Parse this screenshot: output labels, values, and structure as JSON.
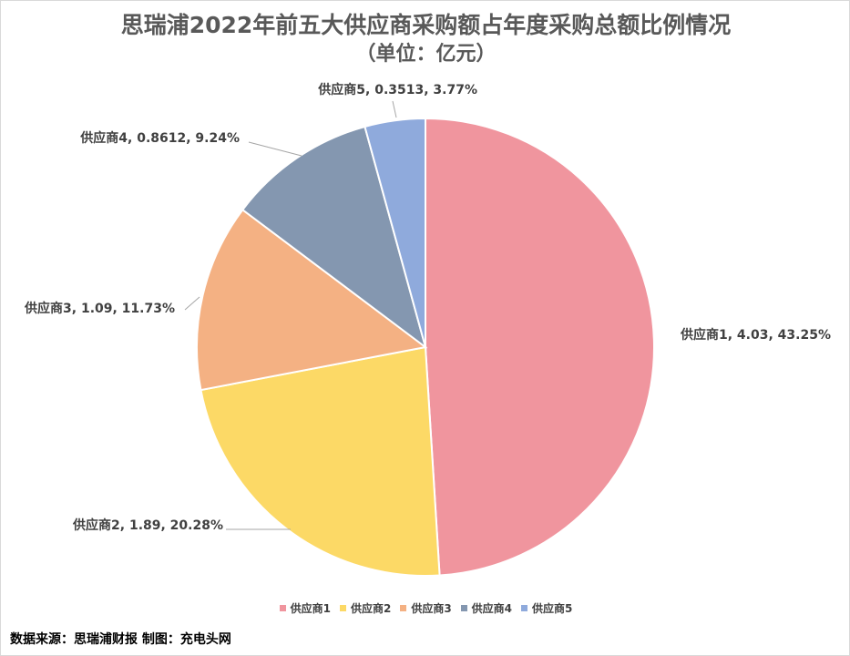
{
  "title": "思瑞浦2022年前五大供应商采购额占年度采购总额比例情况",
  "subtitle": "（单位：亿元）",
  "source": "数据来源：思瑞浦财报 制图：充电头网",
  "chart_data": {
    "type": "pie",
    "title": "思瑞浦2022年前五大供应商采购额占年度采购总额比例情况",
    "unit": "亿元",
    "categories": [
      "供应商1",
      "供应商2",
      "供应商3",
      "供应商4",
      "供应商5"
    ],
    "values": [
      4.03,
      1.89,
      1.09,
      0.8612,
      0.3513
    ],
    "percents": [
      "43.25%",
      "20.28%",
      "11.73%",
      "9.24%",
      "3.77%"
    ],
    "colors": [
      "#F0959E",
      "#FCD966",
      "#F4B183",
      "#8497B0",
      "#8FAADC"
    ],
    "labels": [
      "供应商1, 4.03, 43.25%",
      "供应商2, 1.89, 20.28%",
      "供应商3, 1.09, 11.73%",
      "供应商4, 0.8612, 9.24%",
      "供应商5, 0.3513, 3.77%"
    ],
    "legend_position": "bottom"
  }
}
